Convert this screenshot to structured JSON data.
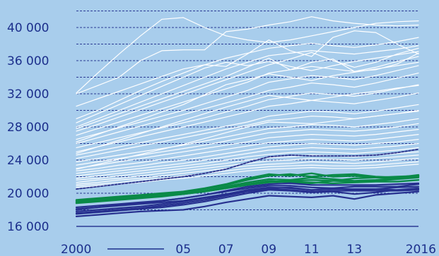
{
  "colors": {
    "background": "#a8cdec",
    "grid": "#2a3a94",
    "series_white": "#ffffff",
    "series_green": "#0a8a48",
    "series_navy": "#27308f",
    "median_dashed": "#2a2f8a",
    "tick_text": "#1c2f8c"
  },
  "chart_data": {
    "type": "line",
    "x": [
      2000,
      2001,
      2002,
      2003,
      2004,
      2005,
      2006,
      2007,
      2008,
      2009,
      2010,
      2011,
      2012,
      2013,
      2014,
      2015,
      2016
    ],
    "xlim": [
      2000,
      2016
    ],
    "ylim": [
      16000,
      42000
    ],
    "grid": true,
    "grid_style": "dashed horizontal",
    "yticks": [
      16000,
      20000,
      24000,
      28000,
      32000,
      36000,
      40000
    ],
    "ytick_labels": [
      "16 000",
      "20 000",
      "24 000",
      "28 000",
      "32 000",
      "36 000",
      "40 000"
    ],
    "xticks": [
      2000,
      2005,
      2007,
      2009,
      2011,
      2013,
      2016
    ],
    "xtick_labels": [
      "2000",
      "05",
      "07",
      "09",
      "11",
      "13",
      "2016"
    ],
    "legend": "none",
    "series": [
      {
        "group": "white",
        "values": [
          32100,
          34500,
          36800,
          39000,
          41000,
          41200,
          40000,
          39000,
          38500,
          38200,
          38500,
          39000,
          39500,
          40000,
          40500,
          40700,
          40800
        ]
      },
      {
        "group": "white",
        "values": [
          32000,
          33000,
          34000,
          36000,
          37200,
          37300,
          37300,
          39500,
          39800,
          40300,
          40700,
          41300,
          40800,
          40500,
          40300,
          40200,
          40300
        ]
      },
      {
        "group": "white",
        "values": [
          29000,
          30000,
          31200,
          32400,
          33500,
          34500,
          35500,
          36300,
          36900,
          37500,
          37800,
          38100,
          37800,
          37600,
          37900,
          38300,
          38800
        ]
      },
      {
        "group": "white",
        "values": [
          28000,
          29000,
          30000,
          31000,
          32000,
          33000,
          34000,
          35000,
          35800,
          36600,
          36900,
          37200,
          37000,
          36800,
          37100,
          37400,
          37800
        ]
      },
      {
        "group": "white",
        "values": [
          27500,
          28300,
          29200,
          30100,
          31000,
          31900,
          32800,
          33700,
          34600,
          35500,
          36200,
          37000,
          36000,
          35200,
          35800,
          36800,
          37500
        ]
      },
      {
        "group": "white",
        "values": [
          27000,
          27800,
          28600,
          29400,
          30200,
          31000,
          31800,
          32600,
          33400,
          34500,
          34900,
          35300,
          35000,
          34700,
          35200,
          35900,
          36500
        ]
      },
      {
        "group": "white",
        "values": [
          26500,
          27200,
          27900,
          28600,
          29300,
          30000,
          30800,
          31600,
          32400,
          33400,
          33800,
          34200,
          34000,
          33700,
          34200,
          34800,
          35400
        ]
      },
      {
        "group": "white",
        "values": [
          26000,
          26700,
          27400,
          28100,
          28800,
          29500,
          30200,
          30900,
          31600,
          32400,
          32800,
          33300,
          33100,
          32800,
          33300,
          33900,
          34500
        ]
      },
      {
        "group": "white",
        "values": [
          25500,
          26100,
          26700,
          27300,
          27900,
          28500,
          29100,
          29800,
          30500,
          31300,
          31700,
          32100,
          31900,
          31700,
          32100,
          32600,
          33100
        ]
      },
      {
        "group": "white",
        "values": [
          25000,
          25600,
          26200,
          26800,
          27400,
          28000,
          28600,
          29200,
          29800,
          30500,
          30800,
          31200,
          31000,
          30800,
          31200,
          31600,
          32100
        ]
      },
      {
        "group": "white",
        "values": [
          24600,
          25100,
          25600,
          26100,
          26600,
          27100,
          27600,
          28100,
          28600,
          29300,
          29600,
          29900,
          29800,
          29600,
          29900,
          30300,
          30700
        ]
      },
      {
        "group": "white",
        "values": [
          24200,
          24700,
          25200,
          25700,
          26200,
          26700,
          27200,
          27700,
          28200,
          28800,
          29000,
          29300,
          29200,
          29000,
          29300,
          29600,
          30000
        ]
      },
      {
        "group": "white",
        "values": [
          23800,
          24200,
          24600,
          25000,
          25400,
          25800,
          26300,
          26800,
          27300,
          27800,
          28000,
          28300,
          28200,
          28000,
          28300,
          28600,
          29000
        ]
      },
      {
        "group": "white",
        "values": [
          23400,
          23800,
          24200,
          24600,
          25000,
          25400,
          25800,
          26300,
          26800,
          27300,
          27500,
          27700,
          27600,
          27500,
          27700,
          28000,
          28400
        ]
      },
      {
        "group": "white",
        "values": [
          23000,
          23400,
          23800,
          24200,
          24600,
          25000,
          25400,
          25800,
          26200,
          26700,
          26900,
          27100,
          27000,
          26900,
          27100,
          27400,
          27700
        ]
      },
      {
        "group": "white",
        "values": [
          22700,
          23000,
          23400,
          23700,
          24100,
          24500,
          24900,
          25300,
          25700,
          26100,
          26300,
          26500,
          26400,
          26300,
          26500,
          26800,
          27100
        ]
      },
      {
        "group": "white",
        "values": [
          22400,
          22700,
          23000,
          23300,
          23700,
          24000,
          24400,
          24800,
          25200,
          25600,
          25800,
          26000,
          25900,
          25800,
          26000,
          26200,
          26500
        ]
      },
      {
        "group": "white",
        "values": [
          22100,
          22400,
          22700,
          23000,
          23300,
          23600,
          24000,
          24400,
          24800,
          25200,
          25300,
          25500,
          25400,
          25300,
          25500,
          25700,
          26000
        ]
      },
      {
        "group": "white",
        "values": [
          21800,
          22100,
          22400,
          22700,
          23000,
          23300,
          23600,
          24000,
          24400,
          24700,
          24900,
          25000,
          24900,
          24800,
          25000,
          25200,
          25500
        ]
      },
      {
        "group": "white",
        "values": [
          21600,
          21800,
          22100,
          22400,
          22700,
          23000,
          23300,
          23600,
          24000,
          24300,
          24400,
          24600,
          24500,
          24400,
          24600,
          24800,
          25000
        ]
      },
      {
        "group": "white",
        "values": [
          21300,
          21600,
          21800,
          22100,
          22400,
          22700,
          23000,
          23300,
          23600,
          23900,
          24000,
          24200,
          24100,
          24000,
          24200,
          24400,
          24600
        ]
      },
      {
        "group": "white",
        "values": [
          21100,
          21300,
          21600,
          21800,
          22100,
          22400,
          22700,
          23000,
          23300,
          23500,
          23600,
          23800,
          23700,
          23600,
          23800,
          24000,
          24200
        ]
      },
      {
        "group": "white",
        "values": [
          20900,
          21100,
          21300,
          21600,
          21800,
          22100,
          22400,
          22700,
          23000,
          23200,
          23300,
          23400,
          23300,
          23300,
          23400,
          23600,
          23800
        ]
      },
      {
        "group": "white",
        "values": [
          20700,
          20900,
          21100,
          21300,
          21600,
          21800,
          22100,
          22400,
          22700,
          22900,
          23000,
          23100,
          23000,
          23000,
          23100,
          23300,
          23500
        ]
      },
      {
        "group": "white",
        "values": [
          28500,
          29600,
          30700,
          31800,
          32900,
          34000,
          35100,
          35800,
          35400,
          35900,
          35300,
          34800,
          35400,
          35900,
          36300,
          36700,
          37100
        ]
      },
      {
        "group": "white",
        "values": [
          26200,
          27100,
          28000,
          28900,
          29800,
          30700,
          31900,
          33100,
          33700,
          34400,
          34000,
          33600,
          34200,
          34600,
          35000,
          35400,
          35800
        ]
      },
      {
        "group": "white",
        "values": [
          24800,
          25600,
          26400,
          27200,
          28000,
          28800,
          29600,
          30400,
          31100,
          31800,
          31500,
          31200,
          31600,
          32000,
          32300,
          32700,
          33000
        ]
      },
      {
        "group": "white",
        "values": [
          22900,
          23500,
          24100,
          24700,
          25300,
          25900,
          26600,
          27300,
          28000,
          28600,
          28500,
          28400,
          28700,
          29000,
          29300,
          29600,
          29900
        ]
      },
      {
        "group": "white",
        "values": [
          30500,
          31400,
          32300,
          33200,
          34100,
          35000,
          35500,
          35300,
          36800,
          38500,
          37200,
          36500,
          38800,
          39600,
          39400,
          38000,
          36800
        ]
      },
      {
        "group": "white",
        "values": [
          27800,
          28700,
          29600,
          30500,
          31400,
          32300,
          33200,
          34100,
          35200,
          36300,
          34900,
          35800,
          36200,
          34700,
          34900,
          35600,
          36900
        ]
      },
      {
        "group": "median",
        "values": [
          20500,
          20800,
          21100,
          21400,
          21700,
          22000,
          22400,
          22900,
          23700,
          24400,
          24600,
          24500,
          24500,
          24500,
          24600,
          24900,
          25300
        ]
      },
      {
        "group": "green",
        "values": [
          19000,
          19200,
          19400,
          19600,
          19800,
          20000,
          20300,
          20700,
          21100,
          21400,
          21500,
          21600,
          21500,
          21400,
          21500,
          21700,
          21900
        ]
      },
      {
        "group": "green",
        "values": [
          18900,
          19100,
          19300,
          19500,
          19700,
          19900,
          20300,
          20800,
          21300,
          21700,
          21600,
          21900,
          21700,
          21500,
          21600,
          21800,
          22100
        ]
      },
      {
        "group": "green",
        "values": [
          18800,
          19000,
          19200,
          19400,
          19600,
          19900,
          20200,
          20600,
          21100,
          21500,
          21300,
          21200,
          21500,
          21800,
          21900,
          22000,
          22100
        ]
      },
      {
        "group": "green",
        "values": [
          19100,
          19300,
          19500,
          19700,
          19900,
          20100,
          20500,
          21000,
          21600,
          22100,
          22300,
          22000,
          22200,
          22300,
          22000,
          21900,
          22200
        ]
      },
      {
        "group": "green",
        "values": [
          18900,
          19100,
          19300,
          19500,
          19700,
          19900,
          20200,
          20600,
          21000,
          21300,
          21400,
          21300,
          21200,
          21300,
          21400,
          21400,
          21600
        ]
      },
      {
        "group": "green",
        "values": [
          19200,
          19400,
          19600,
          19800,
          20000,
          20200,
          20600,
          21100,
          21800,
          22300,
          22100,
          22400,
          22000,
          22100,
          21900,
          21800,
          22000
        ]
      },
      {
        "group": "navy",
        "values": [
          18300,
          18500,
          18700,
          18900,
          19100,
          19400,
          19800,
          20300,
          20800,
          21100,
          21200,
          21000,
          21000,
          21000,
          21000,
          21100,
          21200
        ]
      },
      {
        "group": "navy",
        "values": [
          18000,
          18300,
          18600,
          18800,
          19100,
          19400,
          19800,
          20200,
          20600,
          20900,
          20900,
          20700,
          20600,
          20800,
          20800,
          20800,
          21100
        ]
      },
      {
        "group": "navy",
        "values": [
          17800,
          18000,
          18200,
          18400,
          18700,
          19000,
          19400,
          19800,
          20300,
          20600,
          20700,
          20400,
          20600,
          20400,
          20500,
          20700,
          20800
        ]
      },
      {
        "group": "navy",
        "values": [
          17500,
          17700,
          17900,
          18100,
          18300,
          18600,
          19000,
          19500,
          20000,
          20400,
          20300,
          20100,
          20200,
          19900,
          20100,
          20400,
          20600
        ]
      },
      {
        "group": "navy",
        "values": [
          17200,
          17400,
          17600,
          17800,
          17900,
          18000,
          18400,
          18900,
          19300,
          19700,
          19600,
          19500,
          19700,
          19300,
          19800,
          20000,
          20200
        ]
      },
      {
        "group": "navy",
        "values": [
          18100,
          18300,
          18500,
          18700,
          18900,
          19100,
          19500,
          19900,
          20400,
          20700,
          20600,
          20400,
          20500,
          20500,
          20500,
          20400,
          20500
        ]
      },
      {
        "group": "navy",
        "values": [
          17600,
          17800,
          18000,
          18200,
          18500,
          18800,
          19200,
          19700,
          20200,
          20500,
          20400,
          20200,
          20300,
          20300,
          20300,
          20300,
          20400
        ]
      }
    ]
  }
}
